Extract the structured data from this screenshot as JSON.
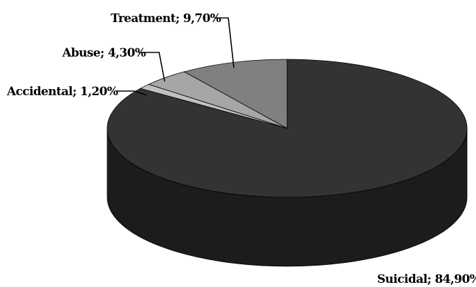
{
  "chart_data": {
    "type": "pie",
    "style": "3d",
    "title": "",
    "legend": "none",
    "slices": [
      {
        "name": "Suicidal",
        "value": 84.9,
        "label": "Suicidal; 84,90%",
        "color": "#333333",
        "side_color": "#1c1c1c"
      },
      {
        "name": "Accidental",
        "value": 1.2,
        "label": "Accidental; 1,20%",
        "color": "#c0c0c0",
        "side_color": "#8a8a8a"
      },
      {
        "name": "Abuse",
        "value": 4.3,
        "label": "Abuse; 4,30%",
        "color": "#a6a6a6",
        "side_color": "#6e6e6e"
      },
      {
        "name": "Treatment",
        "value": 9.7,
        "label": "Treatment; 9,70%",
        "color": "#808080",
        "side_color": "#555555"
      }
    ]
  }
}
